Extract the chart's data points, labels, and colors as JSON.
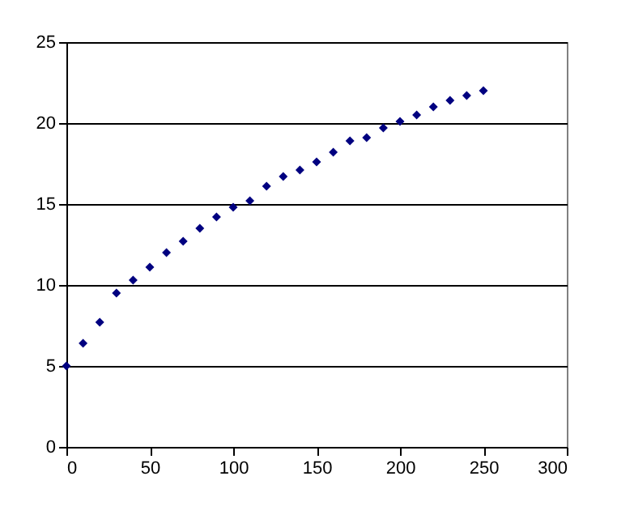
{
  "chart_data": {
    "type": "scatter",
    "x": [
      0,
      10,
      20,
      30,
      40,
      50,
      60,
      70,
      80,
      90,
      100,
      110,
      120,
      130,
      140,
      150,
      160,
      170,
      180,
      190,
      200,
      210,
      220,
      230,
      240,
      250
    ],
    "series": [
      {
        "color": "#000080",
        "values": [
          5.0,
          6.4,
          7.7,
          9.5,
          10.3,
          11.1,
          12.0,
          12.7,
          13.5,
          14.2,
          14.8,
          15.2,
          16.1,
          16.7,
          17.1,
          17.6,
          18.2,
          18.9,
          19.1,
          19.7,
          20.1,
          20.5,
          21.0,
          21.4,
          21.7,
          22.0
        ]
      }
    ],
    "xlim": [
      0,
      300
    ],
    "xticks": [
      0,
      50,
      100,
      150,
      200,
      250,
      300
    ],
    "ylim": [
      0,
      25
    ],
    "yticks": [
      0,
      5,
      10,
      15,
      20,
      25
    ],
    "grid": "y",
    "marker": "diamond"
  }
}
